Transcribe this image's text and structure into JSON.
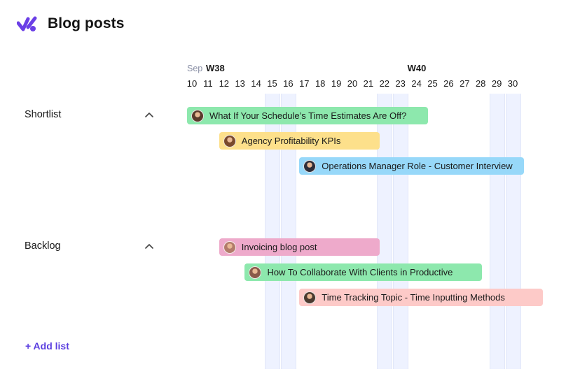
{
  "header": {
    "title": "Blog posts",
    "logo_icon": "checkmark-logo-icon",
    "logo_color": "#6b3fe6"
  },
  "timeline": {
    "month": "Sep",
    "weeks": [
      {
        "label": "W38",
        "start_day": 10
      },
      {
        "label": "W40",
        "start_day": 24
      }
    ],
    "days": [
      10,
      11,
      12,
      13,
      14,
      15,
      16,
      17,
      18,
      19,
      20,
      21,
      22,
      23,
      24,
      25,
      26,
      27,
      28,
      29,
      30
    ],
    "weekend_days": [
      15,
      16,
      22,
      23,
      29,
      30
    ]
  },
  "lists": [
    {
      "name": "Shortlist",
      "collapse_icon": "chevron-up-icon",
      "tasks": [
        {
          "title": "What If Your Schedule’s Time Estimates Are Off?",
          "start": 10,
          "end": 25,
          "color": "#8de8ad"
        },
        {
          "title": "Agency Profitability KPIs",
          "start": 12,
          "end": 22,
          "color": "#fde08b"
        },
        {
          "title": "Operations Manager Role - Customer Interview",
          "start": 17,
          "end": 31,
          "color": "#97d8f9"
        }
      ]
    },
    {
      "name": "Backlog",
      "collapse_icon": "chevron-up-icon",
      "tasks": [
        {
          "title": "Invoicing blog post",
          "start": 12,
          "end": 22,
          "color": "#eeaacb"
        },
        {
          "title": "How To Collaborate With Clients in Productive",
          "start": 13.6,
          "end": 28.4,
          "color": "#8de8ad"
        },
        {
          "title": "Time Tracking Topic - Time Inputting Methods",
          "start": 17,
          "end": 32.2,
          "color": "#fdcac8"
        }
      ]
    }
  ],
  "add_list_label": "+ Add list"
}
